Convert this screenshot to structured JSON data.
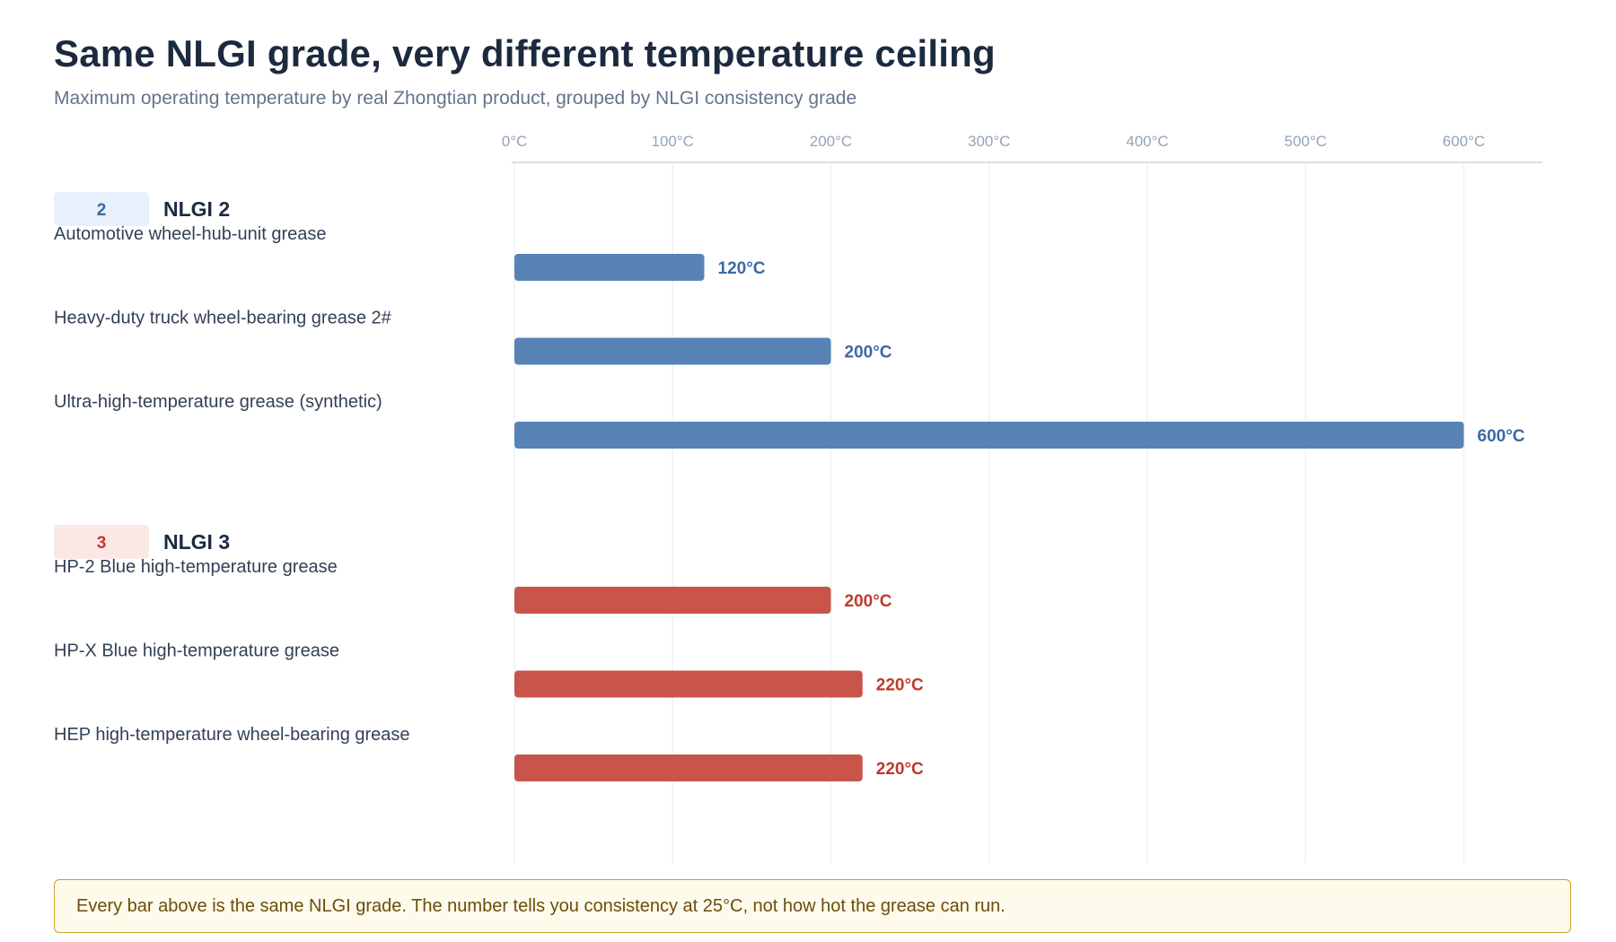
{
  "title": "Same NLGI grade, very different temperature ceiling",
  "subtitle": "Maximum operating temperature by real Zhongtian product, grouped by NLGI consistency grade",
  "note": "Every bar above is the same NLGI grade. The number tells you consistency at 25°C, not how hot the grease can run.",
  "colors": {
    "nlgi2_bar": "#5884b5",
    "nlgi2_text": "#3a6aa3",
    "nlgi2_badge_bg": "#e7f0fb",
    "nlgi3_bar": "#c9544a",
    "nlgi3_text": "#c0392b",
    "nlgi3_badge_bg": "#fbe8e6"
  },
  "chart_data": {
    "type": "bar",
    "orientation": "horizontal",
    "x_ticks": [
      "0°C",
      "100°C",
      "200°C",
      "300°C",
      "400°C",
      "500°C",
      "600°C"
    ],
    "xlim": [
      0,
      640
    ],
    "grid": true,
    "groups": [
      {
        "badge": "2",
        "name": "NLGI 2",
        "color_key": "nlgi2",
        "items": [
          {
            "label": "Automotive wheel-hub-unit grease",
            "value": 120,
            "value_label": "120°C"
          },
          {
            "label": "Heavy-duty truck wheel-bearing grease 2#",
            "value": 200,
            "value_label": "200°C"
          },
          {
            "label": "Ultra-high-temperature grease (synthetic)",
            "value": 600,
            "value_label": "600°C"
          }
        ]
      },
      {
        "badge": "3",
        "name": "NLGI 3",
        "color_key": "nlgi3",
        "items": [
          {
            "label": "HP-2 Blue high-temperature grease",
            "value": 200,
            "value_label": "200°C"
          },
          {
            "label": "HP-X Blue high-temperature grease",
            "value": 220,
            "value_label": "220°C"
          },
          {
            "label": "HEP high-temperature wheel-bearing grease",
            "value": 220,
            "value_label": "220°C"
          }
        ]
      }
    ]
  }
}
